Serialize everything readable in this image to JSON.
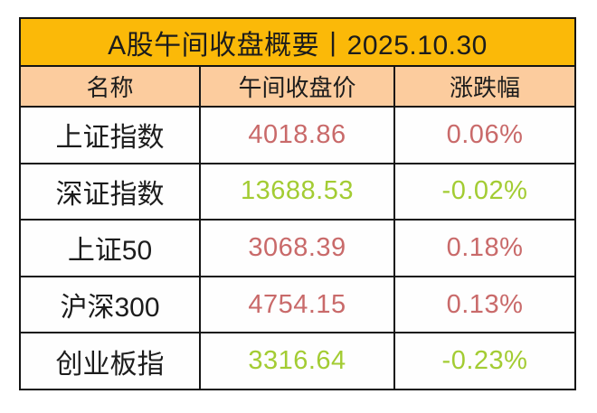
{
  "theme": {
    "page_bg": "#ffffff",
    "title_bg": "#fbb908",
    "header_bg": "#fccc9e",
    "row_bg": "#fefefe",
    "border_color": "#141414",
    "text_color": "#1c1c1c",
    "up_color": "#c96a6a",
    "down_color": "#a3cc33"
  },
  "chart_data": {
    "type": "table",
    "title": "A股午间收盘概要丨2025.10.30",
    "columns": [
      "名称",
      "午间收盘价",
      "涨跌幅"
    ],
    "rows": [
      {
        "name": "上证指数",
        "price": "4018.86",
        "change": "0.06%",
        "trend": "up",
        "color": "#c96a6a"
      },
      {
        "name": "深证指数",
        "price": "13688.53",
        "change": "-0.02%",
        "trend": "down",
        "color": "#a3cc33"
      },
      {
        "name": "上证50",
        "price": "3068.39",
        "change": "0.18%",
        "trend": "up",
        "color": "#c96a6a"
      },
      {
        "name": "沪深300",
        "price": "4754.15",
        "change": "0.13%",
        "trend": "up",
        "color": "#c96a6a"
      },
      {
        "name": "创业板指",
        "price": "3316.64",
        "change": "-0.23%",
        "trend": "down",
        "color": "#a3cc33"
      }
    ]
  }
}
